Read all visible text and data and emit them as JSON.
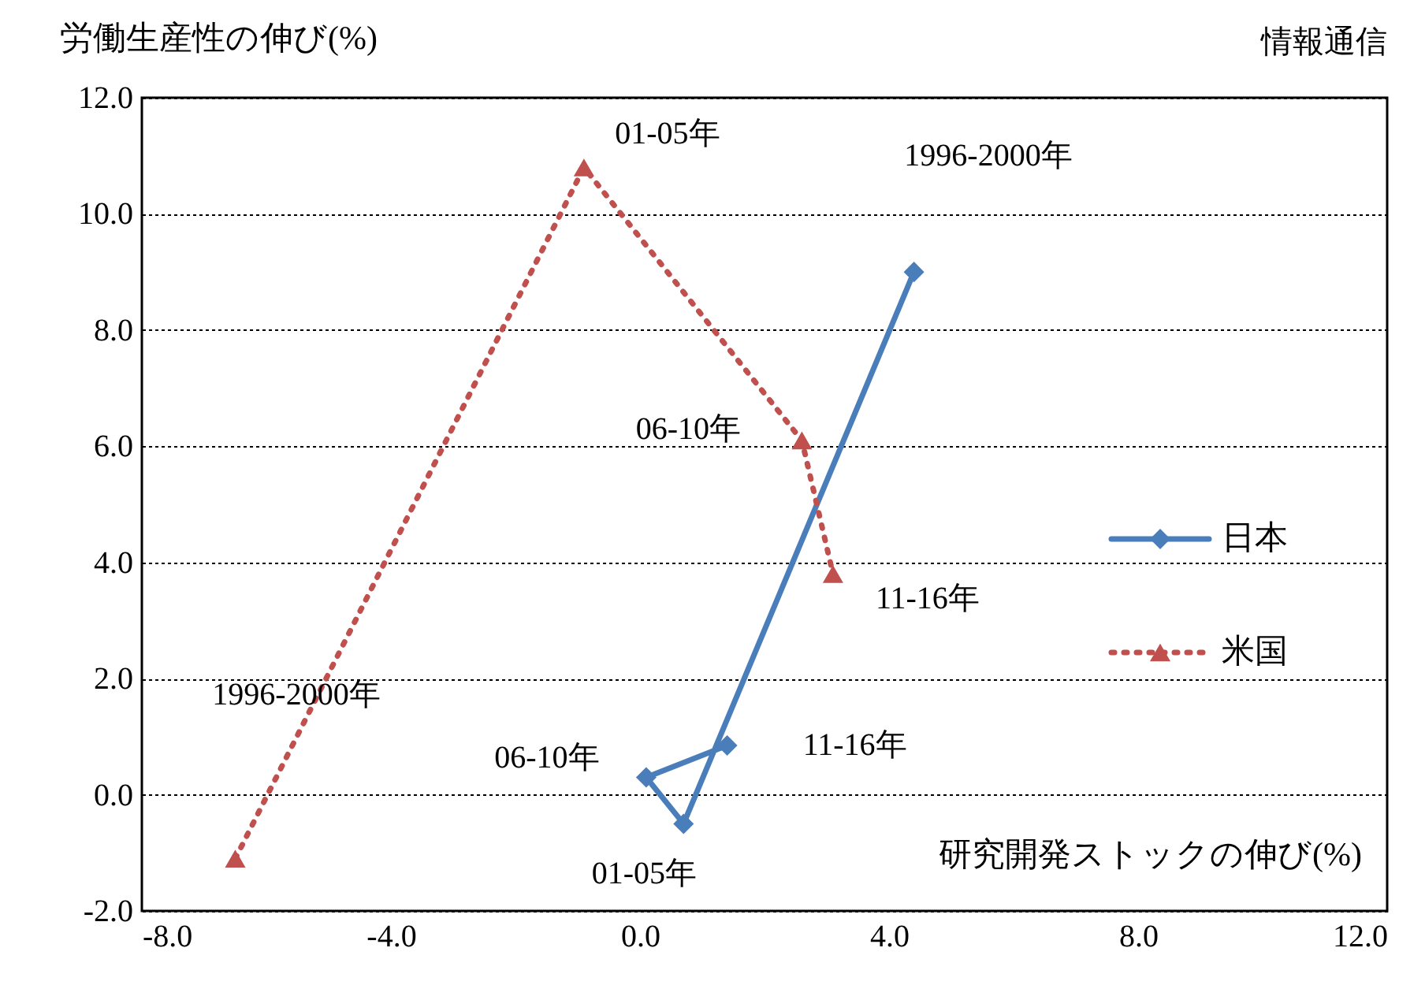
{
  "chart_data": {
    "type": "line",
    "xlabel": "研究開発ストックの伸び(%)",
    "ylabel": "労働生産性の伸び(%)",
    "series": [
      {
        "name": "日本",
        "color": "#4a7ebb",
        "marker": "diamond",
        "line_style": "solid",
        "x": [
          4.4,
          0.7,
          0.1,
          1.4
        ],
        "values": [
          9.0,
          -0.5,
          0.3,
          0.85
        ]
      },
      {
        "name": "米国",
        "color": "#c0504d",
        "marker": "triangle",
        "line_style": "dotted",
        "x": [
          -6.5,
          -0.9,
          2.6,
          3.1
        ],
        "values": [
          -1.1,
          10.8,
          6.1,
          3.8
        ]
      }
    ],
    "annotations": [
      {
        "text": "01-05年",
        "x": 0.7,
        "y": -0.5
      },
      {
        "text": "06-10年",
        "x": 0.1,
        "y": 0.3
      },
      {
        "text": "11-16年",
        "x": 1.4,
        "y": 0.85
      },
      {
        "text": "01-05年",
        "x": -0.9,
        "y": 10.8
      },
      {
        "text": "06-10年",
        "x": 2.6,
        "y": 6.1
      },
      {
        "text": "11-16年",
        "x": 3.1,
        "y": 3.8
      },
      "1996-2000年",
      "1996-2000年",
      "情報通信"
    ],
    "xlim": [
      -8.0,
      12.0
    ],
    "xticks": [
      {
        "value": -8,
        "label": "-8.0"
      },
      {
        "value": -4,
        "label": "-4.0"
      },
      {
        "value": 0,
        "label": "0.0"
      },
      {
        "value": 4,
        "label": "4.0"
      },
      {
        "value": 8,
        "label": "8.0"
      },
      {
        "value": 12,
        "label": "12.0"
      }
    ],
    "ylim": [
      -2.0,
      12.0
    ],
    "yticks": [
      {
        "value": -2,
        "label": "-2.0"
      },
      {
        "value": 0,
        "label": "0.0"
      },
      {
        "value": 2,
        "label": "2.0"
      },
      {
        "value": 4,
        "label": "4.0"
      },
      {
        "value": 6,
        "label": "6.0"
      },
      {
        "value": 8,
        "label": "8.0"
      },
      {
        "value": 10,
        "label": "10.0"
      },
      {
        "value": 12,
        "label": "12.0"
      }
    ],
    "grid": "y",
    "legend": "right"
  }
}
